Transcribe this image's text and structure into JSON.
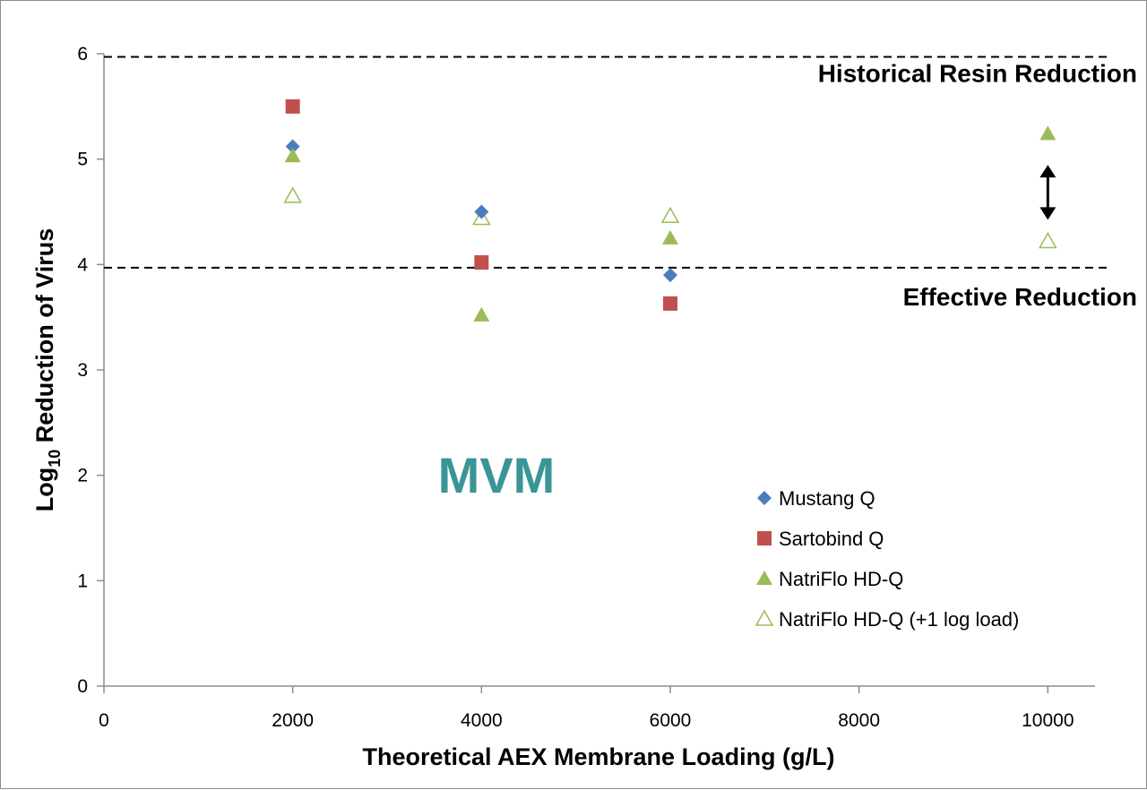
{
  "chart_data": {
    "type": "scatter",
    "xlabel": "Theoretical AEX Membrane Loading (g/L)",
    "ylabel_main": "Log",
    "ylabel_sub": "10",
    "ylabel_rest": " Reduction of Virus",
    "xlim": [
      0,
      10500
    ],
    "ylim": [
      0,
      6
    ],
    "x_ticks": [
      0,
      2000,
      4000,
      6000,
      8000,
      10000
    ],
    "y_ticks": [
      0,
      1,
      2,
      3,
      4,
      5,
      6
    ],
    "annotation": "MVM",
    "annotation_color": "#3a9596",
    "reference_lines": [
      {
        "y": 5.97,
        "label": "Historical Resin Reduction"
      },
      {
        "y": 3.97,
        "label": "Effective Reduction"
      }
    ],
    "double_arrow": {
      "x": 10000,
      "y_from": 4.45,
      "y_to": 4.92
    },
    "series": [
      {
        "name": "Mustang Q",
        "marker": "diamond",
        "color": "#4a7ebb",
        "filled": true,
        "points": [
          [
            2000,
            5.12
          ],
          [
            4000,
            4.5
          ],
          [
            6000,
            3.9
          ]
        ]
      },
      {
        "name": "Sartobind Q",
        "marker": "square",
        "color": "#c0504d",
        "filled": true,
        "points": [
          [
            2000,
            5.5
          ],
          [
            4000,
            4.02
          ],
          [
            6000,
            3.63
          ]
        ]
      },
      {
        "name": "NatriFlo HD-Q",
        "marker": "triangle",
        "color": "#9bbb59",
        "filled": true,
        "points": [
          [
            2000,
            5.03
          ],
          [
            4000,
            3.52
          ],
          [
            6000,
            4.25
          ],
          [
            10000,
            5.24
          ]
        ]
      },
      {
        "name": "NatriFlo HD-Q (+1 log load)",
        "marker": "triangle",
        "color": "#9bbb59",
        "filled": false,
        "points": [
          [
            2000,
            4.65
          ],
          [
            4000,
            4.44
          ],
          [
            6000,
            4.46
          ],
          [
            10000,
            4.22
          ]
        ]
      }
    ],
    "legend_position": "lower-right",
    "grid": false
  }
}
